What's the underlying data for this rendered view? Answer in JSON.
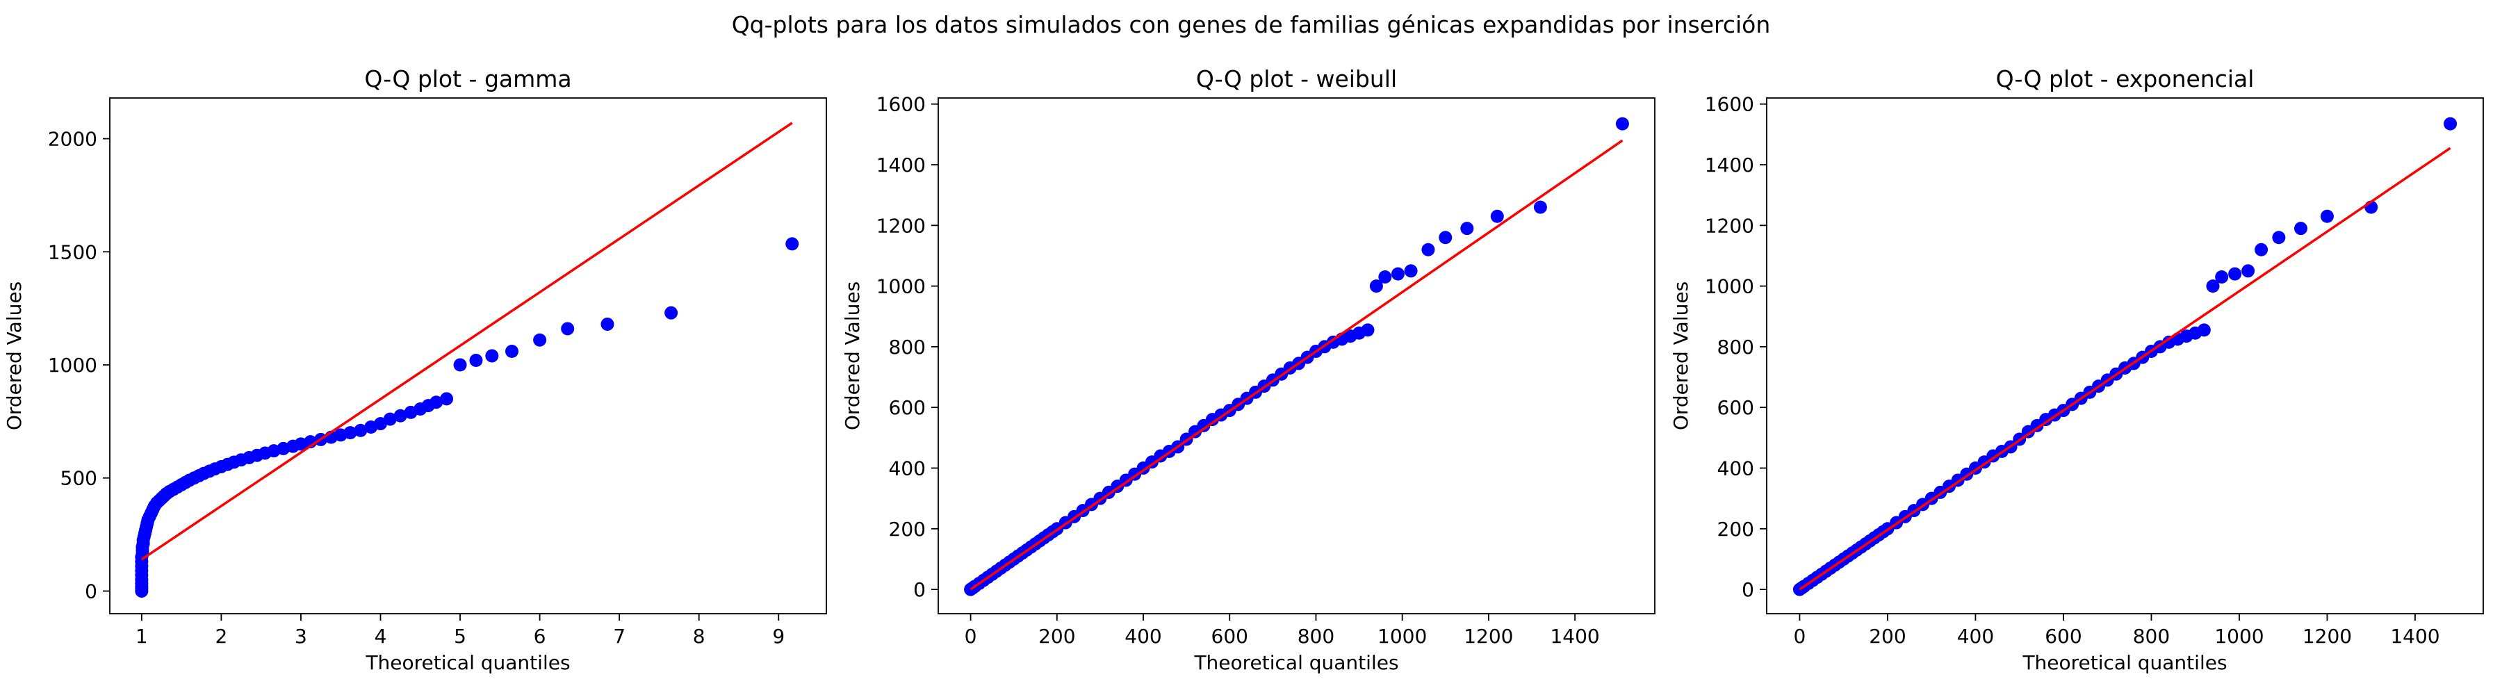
{
  "figure": {
    "suptitle": "Qq-plots para los datos simulados con genes de familias génicas expandidas por inserción"
  },
  "colors": {
    "points": "#0000ff",
    "line": "#ff0000",
    "axis": "#000000"
  },
  "chart_data": [
    {
      "type": "scatter",
      "title": "Q-Q plot - gamma",
      "xlabel": "Theoretical quantiles",
      "ylabel": "Ordered Values",
      "xlim": [
        0.6,
        9.6
      ],
      "ylim": [
        -100,
        2180
      ],
      "xticks": [
        1,
        2,
        3,
        4,
        5,
        6,
        7,
        8,
        9
      ],
      "yticks": [
        0,
        500,
        1000,
        1500,
        2000
      ],
      "grid": false,
      "fit_line": {
        "x": [
          1.0,
          9.17
        ],
        "y": [
          140,
          2070
        ]
      },
      "points": {
        "x": [
          1.0,
          1.0,
          1.0,
          1.0,
          1.0,
          1.0,
          1.0,
          1.0,
          1.0,
          1.0,
          1.01,
          1.01,
          1.01,
          1.02,
          1.02,
          1.03,
          1.04,
          1.05,
          1.06,
          1.07,
          1.08,
          1.1,
          1.12,
          1.14,
          1.16,
          1.19,
          1.22,
          1.25,
          1.28,
          1.31,
          1.35,
          1.4,
          1.45,
          1.5,
          1.55,
          1.6,
          1.66,
          1.72,
          1.78,
          1.85,
          1.92,
          2.0,
          2.08,
          2.16,
          2.25,
          2.35,
          2.45,
          2.55,
          2.66,
          2.78,
          2.9,
          3.0,
          3.12,
          3.25,
          3.38,
          3.5,
          3.62,
          3.75,
          3.88,
          4.0,
          4.12,
          4.25,
          4.38,
          4.5,
          4.6,
          4.7,
          4.83,
          5.0,
          5.2,
          5.4,
          5.65,
          6.0,
          6.35,
          6.85,
          7.65,
          9.17
        ],
        "y": [
          0,
          10,
          20,
          35,
          50,
          70,
          90,
          110,
          130,
          150,
          165,
          180,
          195,
          210,
          225,
          240,
          255,
          270,
          285,
          300,
          315,
          330,
          345,
          360,
          375,
          390,
          400,
          410,
          420,
          430,
          440,
          450,
          460,
          470,
          480,
          490,
          500,
          510,
          520,
          530,
          540,
          550,
          560,
          570,
          580,
          590,
          600,
          610,
          620,
          630,
          640,
          650,
          660,
          670,
          680,
          690,
          700,
          710,
          725,
          740,
          760,
          775,
          790,
          805,
          820,
          835,
          850,
          1000,
          1020,
          1040,
          1060,
          1110,
          1160,
          1180,
          1230,
          1535
        ]
      }
    },
    {
      "type": "scatter",
      "title": "Q-Q plot - weibull",
      "xlabel": "Theoretical quantiles",
      "ylabel": "Ordered Values",
      "xlim": [
        -75,
        1585
      ],
      "ylim": [
        -80,
        1620
      ],
      "xticks": [
        0,
        200,
        400,
        600,
        800,
        1000,
        1200,
        1400
      ],
      "yticks": [
        0,
        200,
        400,
        600,
        800,
        1000,
        1200,
        1400,
        1600
      ],
      "grid": false,
      "fit_line": {
        "x": [
          0,
          1510
        ],
        "y": [
          0,
          1480
        ]
      },
      "points": {
        "x": [
          0,
          5,
          10,
          20,
          30,
          40,
          50,
          60,
          70,
          80,
          90,
          100,
          110,
          120,
          130,
          140,
          150,
          160,
          170,
          180,
          190,
          200,
          220,
          240,
          260,
          280,
          300,
          320,
          340,
          360,
          380,
          400,
          420,
          440,
          460,
          480,
          500,
          520,
          540,
          560,
          580,
          600,
          620,
          640,
          660,
          680,
          700,
          720,
          740,
          760,
          780,
          800,
          820,
          840,
          860,
          880,
          900,
          920,
          940,
          960,
          990,
          1020,
          1060,
          1100,
          1150,
          1220,
          1320,
          1510
        ],
        "y": [
          0,
          5,
          10,
          20,
          30,
          40,
          50,
          60,
          70,
          80,
          90,
          100,
          110,
          120,
          130,
          140,
          150,
          160,
          170,
          180,
          190,
          200,
          220,
          240,
          260,
          280,
          300,
          320,
          340,
          360,
          380,
          400,
          420,
          440,
          455,
          470,
          495,
          520,
          540,
          560,
          575,
          590,
          610,
          630,
          650,
          670,
          690,
          710,
          730,
          745,
          765,
          785,
          800,
          815,
          825,
          835,
          845,
          855,
          1000,
          1030,
          1040,
          1050,
          1120,
          1160,
          1190,
          1230,
          1260,
          1535
        ]
      }
    },
    {
      "type": "scatter",
      "title": "Q-Q plot - exponencial",
      "xlabel": "Theoretical quantiles",
      "ylabel": "Ordered Values",
      "xlim": [
        -75,
        1555
      ],
      "ylim": [
        -80,
        1620
      ],
      "xticks": [
        0,
        200,
        400,
        600,
        800,
        1000,
        1200,
        1400
      ],
      "yticks": [
        0,
        200,
        400,
        600,
        800,
        1000,
        1200,
        1400,
        1600
      ],
      "grid": false,
      "fit_line": {
        "x": [
          0,
          1480
        ],
        "y": [
          0,
          1455
        ]
      },
      "points": {
        "x": [
          0,
          5,
          10,
          20,
          30,
          40,
          50,
          60,
          70,
          80,
          90,
          100,
          110,
          120,
          130,
          140,
          150,
          160,
          170,
          180,
          190,
          200,
          220,
          240,
          260,
          280,
          300,
          320,
          340,
          360,
          380,
          400,
          420,
          440,
          460,
          480,
          500,
          520,
          540,
          560,
          580,
          600,
          620,
          640,
          660,
          680,
          700,
          720,
          740,
          760,
          780,
          800,
          820,
          840,
          860,
          880,
          900,
          920,
          940,
          960,
          990,
          1020,
          1050,
          1090,
          1140,
          1200,
          1300,
          1480
        ],
        "y": [
          0,
          5,
          10,
          20,
          30,
          40,
          50,
          60,
          70,
          80,
          90,
          100,
          110,
          120,
          130,
          140,
          150,
          160,
          170,
          180,
          190,
          200,
          220,
          240,
          260,
          280,
          300,
          320,
          340,
          360,
          380,
          400,
          420,
          440,
          455,
          470,
          495,
          520,
          540,
          560,
          575,
          590,
          610,
          630,
          650,
          670,
          690,
          710,
          730,
          745,
          765,
          785,
          800,
          815,
          825,
          835,
          845,
          855,
          1000,
          1030,
          1040,
          1050,
          1120,
          1160,
          1190,
          1230,
          1260,
          1535
        ]
      }
    }
  ]
}
